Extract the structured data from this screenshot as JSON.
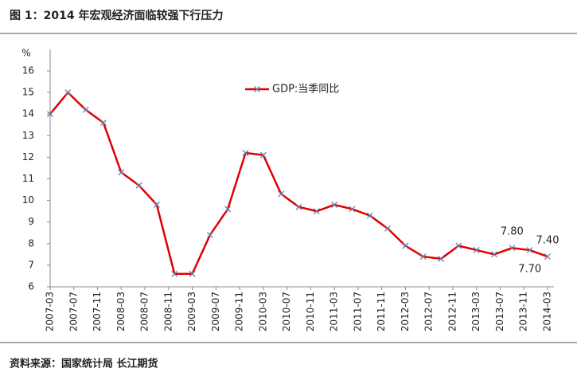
{
  "chart_data": {
    "type": "line",
    "title": "图 1：2014 年宏观经济面临较强下行压力",
    "source": "资料来源：国家统计局 长江期货",
    "y_label": "%",
    "x": [
      0,
      3,
      6,
      9,
      12,
      15,
      18,
      21,
      24,
      27,
      30,
      33,
      36,
      39,
      42,
      45,
      48,
      51,
      54,
      57,
      60,
      63,
      66,
      69,
      72,
      75,
      78,
      81,
      84
    ],
    "xlim": [
      0,
      84
    ],
    "xticks": [
      {
        "value": 0,
        "label": "2007-03"
      },
      {
        "value": 4,
        "label": "2007-07"
      },
      {
        "value": 8,
        "label": "2007-11"
      },
      {
        "value": 12,
        "label": "2008-03"
      },
      {
        "value": 16,
        "label": "2008-07"
      },
      {
        "value": 20,
        "label": "2008-11"
      },
      {
        "value": 24,
        "label": "2009-03"
      },
      {
        "value": 28,
        "label": "2009-07"
      },
      {
        "value": 32,
        "label": "2009-11"
      },
      {
        "value": 36,
        "label": "2010-03"
      },
      {
        "value": 40,
        "label": "2010-07"
      },
      {
        "value": 44,
        "label": "2010-11"
      },
      {
        "value": 48,
        "label": "2011-03"
      },
      {
        "value": 52,
        "label": "2011-07"
      },
      {
        "value": 56,
        "label": "2011-11"
      },
      {
        "value": 60,
        "label": "2012-03"
      },
      {
        "value": 64,
        "label": "2012-07"
      },
      {
        "value": 68,
        "label": "2012-11"
      },
      {
        "value": 72,
        "label": "2013-03"
      },
      {
        "value": 76,
        "label": "2013-07"
      },
      {
        "value": 80,
        "label": "2013-11"
      },
      {
        "value": 84,
        "label": "2014-03"
      }
    ],
    "ylim": [
      6,
      16
    ],
    "yticks": [
      6,
      7,
      8,
      9,
      10,
      11,
      12,
      13,
      14,
      15,
      16
    ],
    "grid": false,
    "legend": "top",
    "series": [
      {
        "name": "GDP:当季同比",
        "color": "#e00000",
        "marker_color": "#6a7fae",
        "values": [
          14.0,
          15.0,
          14.2,
          13.6,
          11.3,
          10.7,
          9.8,
          6.6,
          6.6,
          8.4,
          9.6,
          12.2,
          12.1,
          10.3,
          9.7,
          9.5,
          9.8,
          9.6,
          9.3,
          8.7,
          7.9,
          7.4,
          7.3,
          7.9,
          7.7,
          7.5,
          7.8,
          7.7,
          7.4
        ],
        "value_labels": [
          null,
          null,
          null,
          null,
          null,
          null,
          null,
          null,
          null,
          null,
          null,
          null,
          null,
          null,
          null,
          null,
          null,
          null,
          null,
          null,
          null,
          null,
          null,
          null,
          null,
          null,
          "7.80",
          "7.70",
          "7.40"
        ]
      }
    ]
  }
}
